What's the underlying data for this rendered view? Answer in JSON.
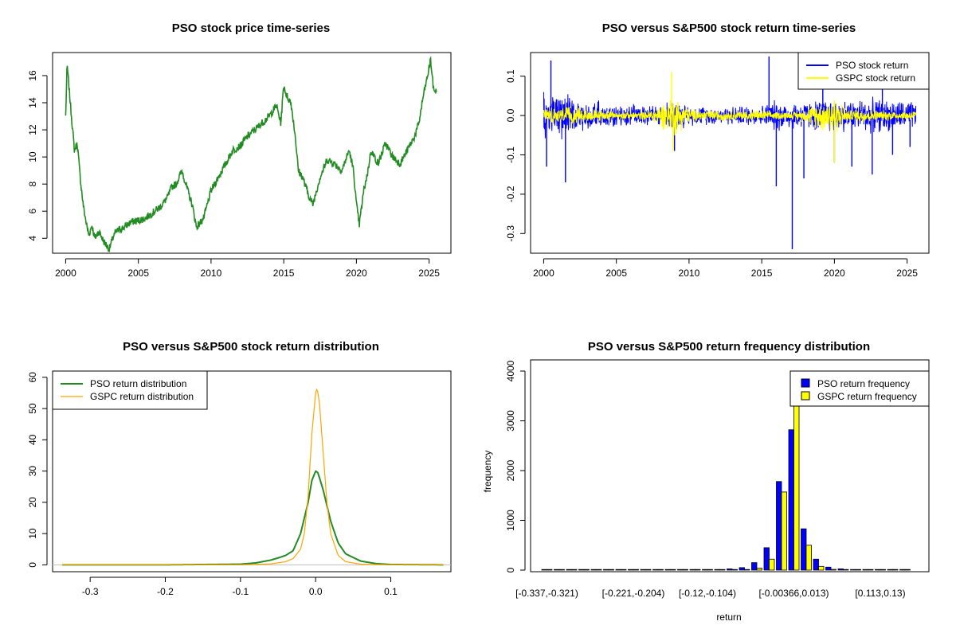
{
  "chart_data": [
    {
      "id": "price",
      "type": "line",
      "title": "PSO stock price time-series",
      "xlabel": "",
      "ylabel": "",
      "xlim": [
        2000,
        2025.6
      ],
      "ylim": [
        3,
        17.5
      ],
      "xticks": [
        2000,
        2005,
        2010,
        2015,
        2020,
        2025
      ],
      "yticks": [
        4,
        6,
        8,
        10,
        12,
        14,
        16
      ],
      "series": [
        {
          "name": "PSO stock price",
          "color": "#228B22",
          "x": [
            2000.0,
            2000.1,
            2000.2,
            2000.4,
            2000.6,
            2000.8,
            2001.0,
            2001.2,
            2001.4,
            2001.6,
            2001.8,
            2002.0,
            2002.3,
            2002.6,
            2003.0,
            2003.3,
            2003.6,
            2004.0,
            2004.5,
            2005.0,
            2005.5,
            2006.0,
            2006.5,
            2007.0,
            2007.3,
            2007.6,
            2008.0,
            2008.4,
            2008.7,
            2009.0,
            2009.5,
            2010.0,
            2010.5,
            2011.0,
            2011.5,
            2012.0,
            2012.5,
            2013.0,
            2013.5,
            2014.0,
            2014.5,
            2014.8,
            2015.0,
            2015.2,
            2015.5,
            2015.8,
            2016.0,
            2016.3,
            2016.7,
            2017.0,
            2017.5,
            2018.0,
            2018.5,
            2019.0,
            2019.5,
            2019.8,
            2020.0,
            2020.2,
            2020.5,
            2020.8,
            2021.0,
            2021.5,
            2022.0,
            2022.5,
            2023.0,
            2023.5,
            2024.0,
            2024.3,
            2024.6,
            2024.9,
            2025.1,
            2025.3,
            2025.5
          ],
          "values": [
            13.0,
            16.8,
            15.5,
            13.0,
            10.5,
            11.0,
            8.5,
            6.5,
            5.2,
            4.2,
            5.0,
            4.0,
            4.5,
            3.8,
            3.2,
            4.2,
            4.6,
            4.8,
            5.2,
            5.3,
            5.5,
            5.9,
            6.3,
            7.0,
            7.8,
            8.0,
            9.0,
            7.5,
            6.5,
            4.8,
            5.5,
            7.5,
            8.5,
            9.5,
            10.5,
            10.8,
            11.5,
            12.0,
            12.5,
            13.0,
            13.8,
            12.5,
            15.3,
            14.5,
            14.0,
            11.5,
            9.0,
            8.5,
            7.2,
            6.5,
            8.5,
            9.8,
            9.5,
            9.0,
            10.5,
            9.0,
            6.5,
            5.0,
            7.5,
            9.0,
            10.5,
            9.5,
            11.0,
            10.0,
            9.5,
            10.5,
            11.5,
            12.5,
            14.5,
            16.0,
            17.2,
            15.0,
            14.8
          ]
        }
      ]
    },
    {
      "id": "returns",
      "type": "line",
      "title": "PSO versus S&P500 stock return time-series",
      "xlabel": "",
      "ylabel": "",
      "xlim": [
        2000,
        2025.6
      ],
      "ylim": [
        -0.35,
        0.16
      ],
      "xticks": [
        2000,
        2005,
        2010,
        2015,
        2020,
        2025
      ],
      "yticks": [
        -0.3,
        -0.2,
        -0.1,
        0.0,
        0.1
      ],
      "ytick_labels": [
        "-0.3",
        "-0.2",
        "-0.1",
        "0.0",
        "0.1"
      ],
      "legend": [
        "PSO stock return",
        "GSPC stock return"
      ],
      "legend_position": "top-right",
      "series": [
        {
          "name": "PSO stock return",
          "color": "#0000FF",
          "band_x": [
            2000,
            2002,
            2003,
            2005,
            2008,
            2009,
            2010,
            2012,
            2015,
            2016,
            2017,
            2018,
            2020,
            2021,
            2022,
            2024,
            2025.5
          ],
          "band_amplitude": [
            0.08,
            0.06,
            0.045,
            0.03,
            0.03,
            0.045,
            0.028,
            0.025,
            0.03,
            0.045,
            0.04,
            0.04,
            0.05,
            0.045,
            0.05,
            0.045,
            0.04
          ],
          "spikes_x": [
            2000.2,
            2000.5,
            2001.5,
            2009.0,
            2015.5,
            2016.0,
            2017.1,
            2017.9,
            2019.2,
            2020.0,
            2021.2,
            2022.6,
            2023.3,
            2024.0,
            2025.2
          ],
          "spikes_y": [
            -0.13,
            0.14,
            -0.17,
            -0.09,
            0.15,
            -0.18,
            -0.34,
            -0.16,
            0.11,
            -0.12,
            -0.13,
            -0.15,
            0.13,
            -0.1,
            -0.08
          ]
        },
        {
          "name": "GSPC stock return",
          "color": "#FFFF00",
          "band_x": [
            2000,
            2002,
            2003,
            2005,
            2007,
            2008.7,
            2009.0,
            2009.5,
            2010,
            2012,
            2015,
            2017,
            2018,
            2020.0,
            2020.3,
            2021,
            2022,
            2023,
            2025.5
          ],
          "band_amplitude": [
            0.025,
            0.025,
            0.02,
            0.012,
            0.012,
            0.05,
            0.06,
            0.04,
            0.02,
            0.015,
            0.015,
            0.01,
            0.02,
            0.06,
            0.04,
            0.015,
            0.025,
            0.015,
            0.015
          ],
          "spikes_x": [
            2008.8,
            2008.9,
            2020.0
          ],
          "spikes_y": [
            0.11,
            -0.09,
            -0.12
          ]
        }
      ]
    },
    {
      "id": "density",
      "type": "line",
      "title": "PSO versus S&P500 stock return distribution",
      "xlabel": "",
      "ylabel": "",
      "xlim": [
        -0.35,
        0.18
      ],
      "ylim": [
        0,
        60
      ],
      "xticks": [
        -0.3,
        -0.2,
        -0.1,
        0.0,
        0.1
      ],
      "xtick_labels": [
        "-0.3",
        "-0.2",
        "-0.1",
        "0.0",
        "0.1"
      ],
      "yticks": [
        0,
        10,
        20,
        30,
        40,
        50,
        60
      ],
      "legend": [
        "PSO return distribution",
        "GSPC return distribution"
      ],
      "legend_position": "top-left",
      "series": [
        {
          "name": "PSO return distribution",
          "color": "#228B22",
          "x": [
            -0.337,
            -0.2,
            -0.1,
            -0.08,
            -0.06,
            -0.05,
            -0.04,
            -0.03,
            -0.02,
            -0.01,
            -0.005,
            0.0,
            0.003,
            0.01,
            0.02,
            0.03,
            0.04,
            0.06,
            0.08,
            0.1,
            0.17
          ],
          "values": [
            0,
            0,
            0.2,
            0.6,
            1.5,
            2.2,
            3.0,
            4.5,
            10.0,
            20.0,
            27.0,
            30.0,
            29.5,
            24.0,
            14.0,
            7.0,
            3.5,
            1.2,
            0.4,
            0.1,
            0
          ]
        },
        {
          "name": "GSPC return distribution",
          "color": "#FFA500",
          "x": [
            -0.337,
            -0.1,
            -0.06,
            -0.04,
            -0.03,
            -0.02,
            -0.015,
            -0.01,
            -0.005,
            0.0,
            0.002,
            0.005,
            0.01,
            0.015,
            0.02,
            0.03,
            0.04,
            0.06,
            0.1,
            0.17
          ],
          "values": [
            0,
            0,
            0.3,
            1.0,
            2.0,
            5.0,
            10.0,
            22.0,
            42.0,
            55.0,
            56.5,
            52.0,
            36.0,
            20.0,
            10.0,
            3.0,
            1.0,
            0.2,
            0,
            0
          ]
        }
      ]
    },
    {
      "id": "histogram",
      "type": "bar",
      "title": "PSO versus S&P500 return frequency distribution",
      "xlabel": "return",
      "ylabel": "frequency",
      "ylim": [
        0,
        4000
      ],
      "yticks": [
        0,
        1000,
        2000,
        3000,
        4000
      ],
      "category_labels_shown": [
        "[-0.337,-0.321)",
        "[-0.221,-0.204)",
        "[-0.12,-0.104)",
        "[-0.00366,0.013)",
        "[0.113,0.13)"
      ],
      "category_label_positions": [
        0,
        7,
        13,
        20,
        27
      ],
      "legend": [
        "PSO return frequency",
        "GSPC return frequency"
      ],
      "legend_position": "top-right",
      "series": [
        {
          "name": "PSO return frequency",
          "color": "#0000FF",
          "values": [
            1,
            0,
            0,
            0,
            1,
            0,
            0,
            0,
            0,
            0,
            1,
            0,
            3,
            6,
            12,
            25,
            50,
            150,
            450,
            1780,
            2820,
            830,
            220,
            60,
            25,
            10,
            5,
            2,
            1,
            1
          ]
        },
        {
          "name": "GSPC return frequency",
          "color": "#FFFF00",
          "values": [
            0,
            0,
            0,
            0,
            0,
            0,
            0,
            0,
            0,
            0,
            0,
            0,
            0,
            1,
            2,
            5,
            10,
            40,
            220,
            1570,
            3700,
            500,
            75,
            15,
            5,
            2,
            1,
            0,
            0,
            0
          ]
        }
      ]
    }
  ]
}
